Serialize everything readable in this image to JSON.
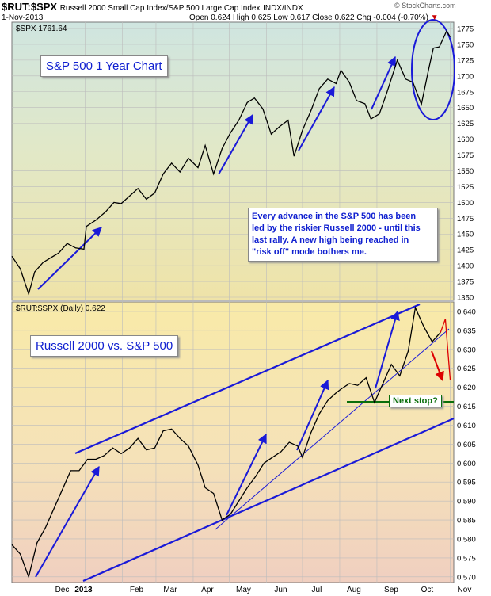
{
  "header": {
    "symbol": "$RUT:$SPX",
    "description": "Russell 2000 Small Cap Index/S&P 500 Large Cap Index",
    "exchange": "INDX/INDX",
    "date": "1-Nov-2013",
    "open": "Open 0.624",
    "high": "High 0.625",
    "low": "Low 0.617",
    "close": "Close 0.622",
    "chg": "Chg -0.004 (-0.70%)",
    "watermark": "© StockCharts.com"
  },
  "annotations": {
    "top_box": "S&P 500 1 Year Chart",
    "bottom_box": "Russell 2000 vs. S&P 500",
    "note_lines": [
      "Every advance in the S&P 500 has been",
      "led by the riskier Russell 2000 - until this",
      "last rally.  A new high being reached in",
      "\"risk off\" mode bothers me."
    ],
    "next_stop": "Next stop?"
  },
  "chart_data": [
    {
      "type": "line",
      "legend": "$SPX 1761.64",
      "y_ticks": [
        1350,
        1375,
        1400,
        1425,
        1450,
        1475,
        1500,
        1525,
        1550,
        1575,
        1600,
        1625,
        1650,
        1675,
        1700,
        1725,
        1750,
        1775
      ],
      "ylim": [
        1345,
        1785
      ],
      "x_ticks": [
        "Dec",
        "2013",
        "Feb",
        "Mar",
        "Apr",
        "May",
        "Jun",
        "Jul",
        "Aug",
        "Sep",
        "Oct",
        "Nov"
      ],
      "series": [
        {
          "color": "#000000",
          "points": [
            [
              "2012-11-01",
              1415
            ],
            [
              "2012-11-08",
              1395
            ],
            [
              "2012-11-15",
              1355
            ],
            [
              "2012-11-20",
              1390
            ],
            [
              "2012-11-27",
              1405
            ],
            [
              "2012-12-03",
              1412
            ],
            [
              "2012-12-10",
              1420
            ],
            [
              "2012-12-17",
              1435
            ],
            [
              "2012-12-24",
              1428
            ],
            [
              "2012-12-31",
              1426
            ],
            [
              "2013-01-02",
              1462
            ],
            [
              "2013-01-10",
              1472
            ],
            [
              "2013-01-18",
              1485
            ],
            [
              "2013-01-25",
              1500
            ],
            [
              "2013-01-31",
              1498
            ],
            [
              "2013-02-07",
              1510
            ],
            [
              "2013-02-14",
              1522
            ],
            [
              "2013-02-21",
              1505
            ],
            [
              "2013-02-28",
              1515
            ],
            [
              "2013-03-07",
              1545
            ],
            [
              "2013-03-14",
              1562
            ],
            [
              "2013-03-21",
              1548
            ],
            [
              "2013-03-28",
              1570
            ],
            [
              "2013-04-05",
              1555
            ],
            [
              "2013-04-11",
              1590
            ],
            [
              "2013-04-18",
              1545
            ],
            [
              "2013-04-25",
              1585
            ],
            [
              "2013-05-02",
              1610
            ],
            [
              "2013-05-09",
              1630
            ],
            [
              "2013-05-16",
              1658
            ],
            [
              "2013-05-22",
              1665
            ],
            [
              "2013-05-29",
              1648
            ],
            [
              "2013-06-05",
              1608
            ],
            [
              "2013-06-12",
              1620
            ],
            [
              "2013-06-19",
              1630
            ],
            [
              "2013-06-24",
              1573
            ],
            [
              "2013-07-01",
              1614
            ],
            [
              "2013-07-08",
              1645
            ],
            [
              "2013-07-15",
              1680
            ],
            [
              "2013-07-22",
              1695
            ],
            [
              "2013-07-29",
              1688
            ],
            [
              "2013-08-02",
              1709
            ],
            [
              "2013-08-09",
              1690
            ],
            [
              "2013-08-15",
              1661
            ],
            [
              "2013-08-22",
              1656
            ],
            [
              "2013-08-27",
              1632
            ],
            [
              "2013-09-03",
              1640
            ],
            [
              "2013-09-09",
              1672
            ],
            [
              "2013-09-18",
              1725
            ],
            [
              "2013-09-25",
              1695
            ],
            [
              "2013-10-01",
              1690
            ],
            [
              "2013-10-08",
              1655
            ],
            [
              "2013-10-14",
              1710
            ],
            [
              "2013-10-18",
              1744
            ],
            [
              "2013-10-23",
              1746
            ],
            [
              "2013-10-29",
              1771
            ],
            [
              "2013-11-01",
              1761.64
            ]
          ]
        }
      ]
    },
    {
      "type": "line",
      "legend": "$RUT:$SPX (Daily) 0.622",
      "y_ticks": [
        0.57,
        0.575,
        0.58,
        0.585,
        0.59,
        0.595,
        0.6,
        0.605,
        0.61,
        0.615,
        0.62,
        0.625,
        0.63,
        0.635,
        0.64
      ],
      "ylim": [
        0.5685,
        0.6425
      ],
      "x_ticks": [
        "Dec",
        "2013",
        "Feb",
        "Mar",
        "Apr",
        "May",
        "Jun",
        "Jul",
        "Aug",
        "Sep",
        "Oct",
        "Nov"
      ],
      "series": [
        {
          "color": "#000000",
          "points": [
            [
              "2012-11-01",
              0.5785
            ],
            [
              "2012-11-08",
              0.576
            ],
            [
              "2012-11-15",
              0.57
            ],
            [
              "2012-11-22",
              0.579
            ],
            [
              "2012-11-29",
              0.583
            ],
            [
              "2012-12-06",
              0.588
            ],
            [
              "2012-12-13",
              0.593
            ],
            [
              "2012-12-20",
              0.598
            ],
            [
              "2012-12-27",
              0.598
            ],
            [
              "2013-01-03",
              0.601
            ],
            [
              "2013-01-10",
              0.601
            ],
            [
              "2013-01-17",
              0.602
            ],
            [
              "2013-01-24",
              0.604
            ],
            [
              "2013-01-31",
              0.6025
            ],
            [
              "2013-02-07",
              0.604
            ],
            [
              "2013-02-14",
              0.6065
            ],
            [
              "2013-02-21",
              0.6035
            ],
            [
              "2013-02-28",
              0.604
            ],
            [
              "2013-03-07",
              0.6085
            ],
            [
              "2013-03-14",
              0.609
            ],
            [
              "2013-03-21",
              0.6065
            ],
            [
              "2013-03-28",
              0.6045
            ],
            [
              "2013-04-05",
              0.5995
            ],
            [
              "2013-04-11",
              0.5935
            ],
            [
              "2013-04-18",
              0.592
            ],
            [
              "2013-04-25",
              0.585
            ],
            [
              "2013-05-02",
              0.5865
            ],
            [
              "2013-05-09",
              0.59
            ],
            [
              "2013-05-16",
              0.5935
            ],
            [
              "2013-05-23",
              0.5965
            ],
            [
              "2013-05-30",
              0.6
            ],
            [
              "2013-06-06",
              0.6015
            ],
            [
              "2013-06-13",
              0.603
            ],
            [
              "2013-06-20",
              0.6055
            ],
            [
              "2013-06-27",
              0.6045
            ],
            [
              "2013-07-01",
              0.6015
            ],
            [
              "2013-07-08",
              0.608
            ],
            [
              "2013-07-15",
              0.613
            ],
            [
              "2013-07-22",
              0.6165
            ],
            [
              "2013-07-29",
              0.6185
            ],
            [
              "2013-08-02",
              0.6195
            ],
            [
              "2013-08-09",
              0.621
            ],
            [
              "2013-08-16",
              0.6205
            ],
            [
              "2013-08-23",
              0.6225
            ],
            [
              "2013-08-30",
              0.616
            ],
            [
              "2013-09-06",
              0.621
            ],
            [
              "2013-09-13",
              0.626
            ],
            [
              "2013-09-20",
              0.623
            ],
            [
              "2013-09-27",
              0.6295
            ],
            [
              "2013-10-03",
              0.641
            ],
            [
              "2013-10-10",
              0.636
            ],
            [
              "2013-10-17",
              0.632
            ],
            [
              "2013-10-24",
              0.6345
            ]
          ]
        },
        {
          "color": "#dd0000",
          "points": [
            [
              "2013-10-24",
              0.6345
            ],
            [
              "2013-10-28",
              0.638
            ],
            [
              "2013-10-30",
              0.63
            ],
            [
              "2013-11-01",
              0.622
            ]
          ]
        }
      ]
    }
  ],
  "colors": {
    "accent": "#1a1ad8",
    "support": "#0a6e0a",
    "warning": "#dd0000"
  }
}
